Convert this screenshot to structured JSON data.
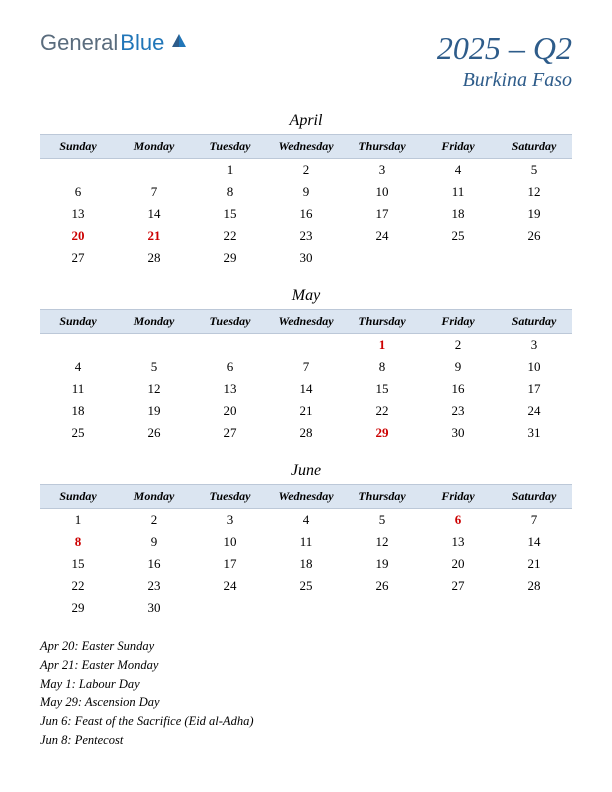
{
  "logo": {
    "text1": "General",
    "text2": "Blue"
  },
  "title": {
    "main": "2025 – Q2",
    "sub": "Burkina Faso"
  },
  "colors": {
    "header_bg": "#dbe5f1",
    "header_border": "#bcc8d8",
    "title_color": "#2e5c8a",
    "holiday_color": "#cc0000",
    "logo_gray": "#5a6c7d",
    "logo_blue": "#2176b8"
  },
  "day_headers": [
    "Sunday",
    "Monday",
    "Tuesday",
    "Wednesday",
    "Thursday",
    "Friday",
    "Saturday"
  ],
  "months": [
    {
      "name": "April",
      "weeks": [
        [
          "",
          "",
          "1",
          "2",
          "3",
          "4",
          "5"
        ],
        [
          "6",
          "7",
          "8",
          "9",
          "10",
          "11",
          "12"
        ],
        [
          "13",
          "14",
          "15",
          "16",
          "17",
          "18",
          "19"
        ],
        [
          "20",
          "21",
          "22",
          "23",
          "24",
          "25",
          "26"
        ],
        [
          "27",
          "28",
          "29",
          "30",
          "",
          "",
          ""
        ]
      ],
      "holidays": [
        "20",
        "21"
      ]
    },
    {
      "name": "May",
      "weeks": [
        [
          "",
          "",
          "",
          "",
          "1",
          "2",
          "3"
        ],
        [
          "4",
          "5",
          "6",
          "7",
          "8",
          "9",
          "10"
        ],
        [
          "11",
          "12",
          "13",
          "14",
          "15",
          "16",
          "17"
        ],
        [
          "18",
          "19",
          "20",
          "21",
          "22",
          "23",
          "24"
        ],
        [
          "25",
          "26",
          "27",
          "28",
          "29",
          "30",
          "31"
        ]
      ],
      "holidays": [
        "1",
        "29"
      ]
    },
    {
      "name": "June",
      "weeks": [
        [
          "1",
          "2",
          "3",
          "4",
          "5",
          "6",
          "7"
        ],
        [
          "8",
          "9",
          "10",
          "11",
          "12",
          "13",
          "14"
        ],
        [
          "15",
          "16",
          "17",
          "18",
          "19",
          "20",
          "21"
        ],
        [
          "22",
          "23",
          "24",
          "25",
          "26",
          "27",
          "28"
        ],
        [
          "29",
          "30",
          "",
          "",
          "",
          "",
          ""
        ]
      ],
      "holidays": [
        "6",
        "8"
      ]
    }
  ],
  "holiday_list": [
    "Apr 20: Easter Sunday",
    "Apr 21: Easter Monday",
    "May 1: Labour Day",
    "May 29: Ascension Day",
    "Jun 6: Feast of the Sacrifice (Eid al-Adha)",
    "Jun 8: Pentecost"
  ]
}
